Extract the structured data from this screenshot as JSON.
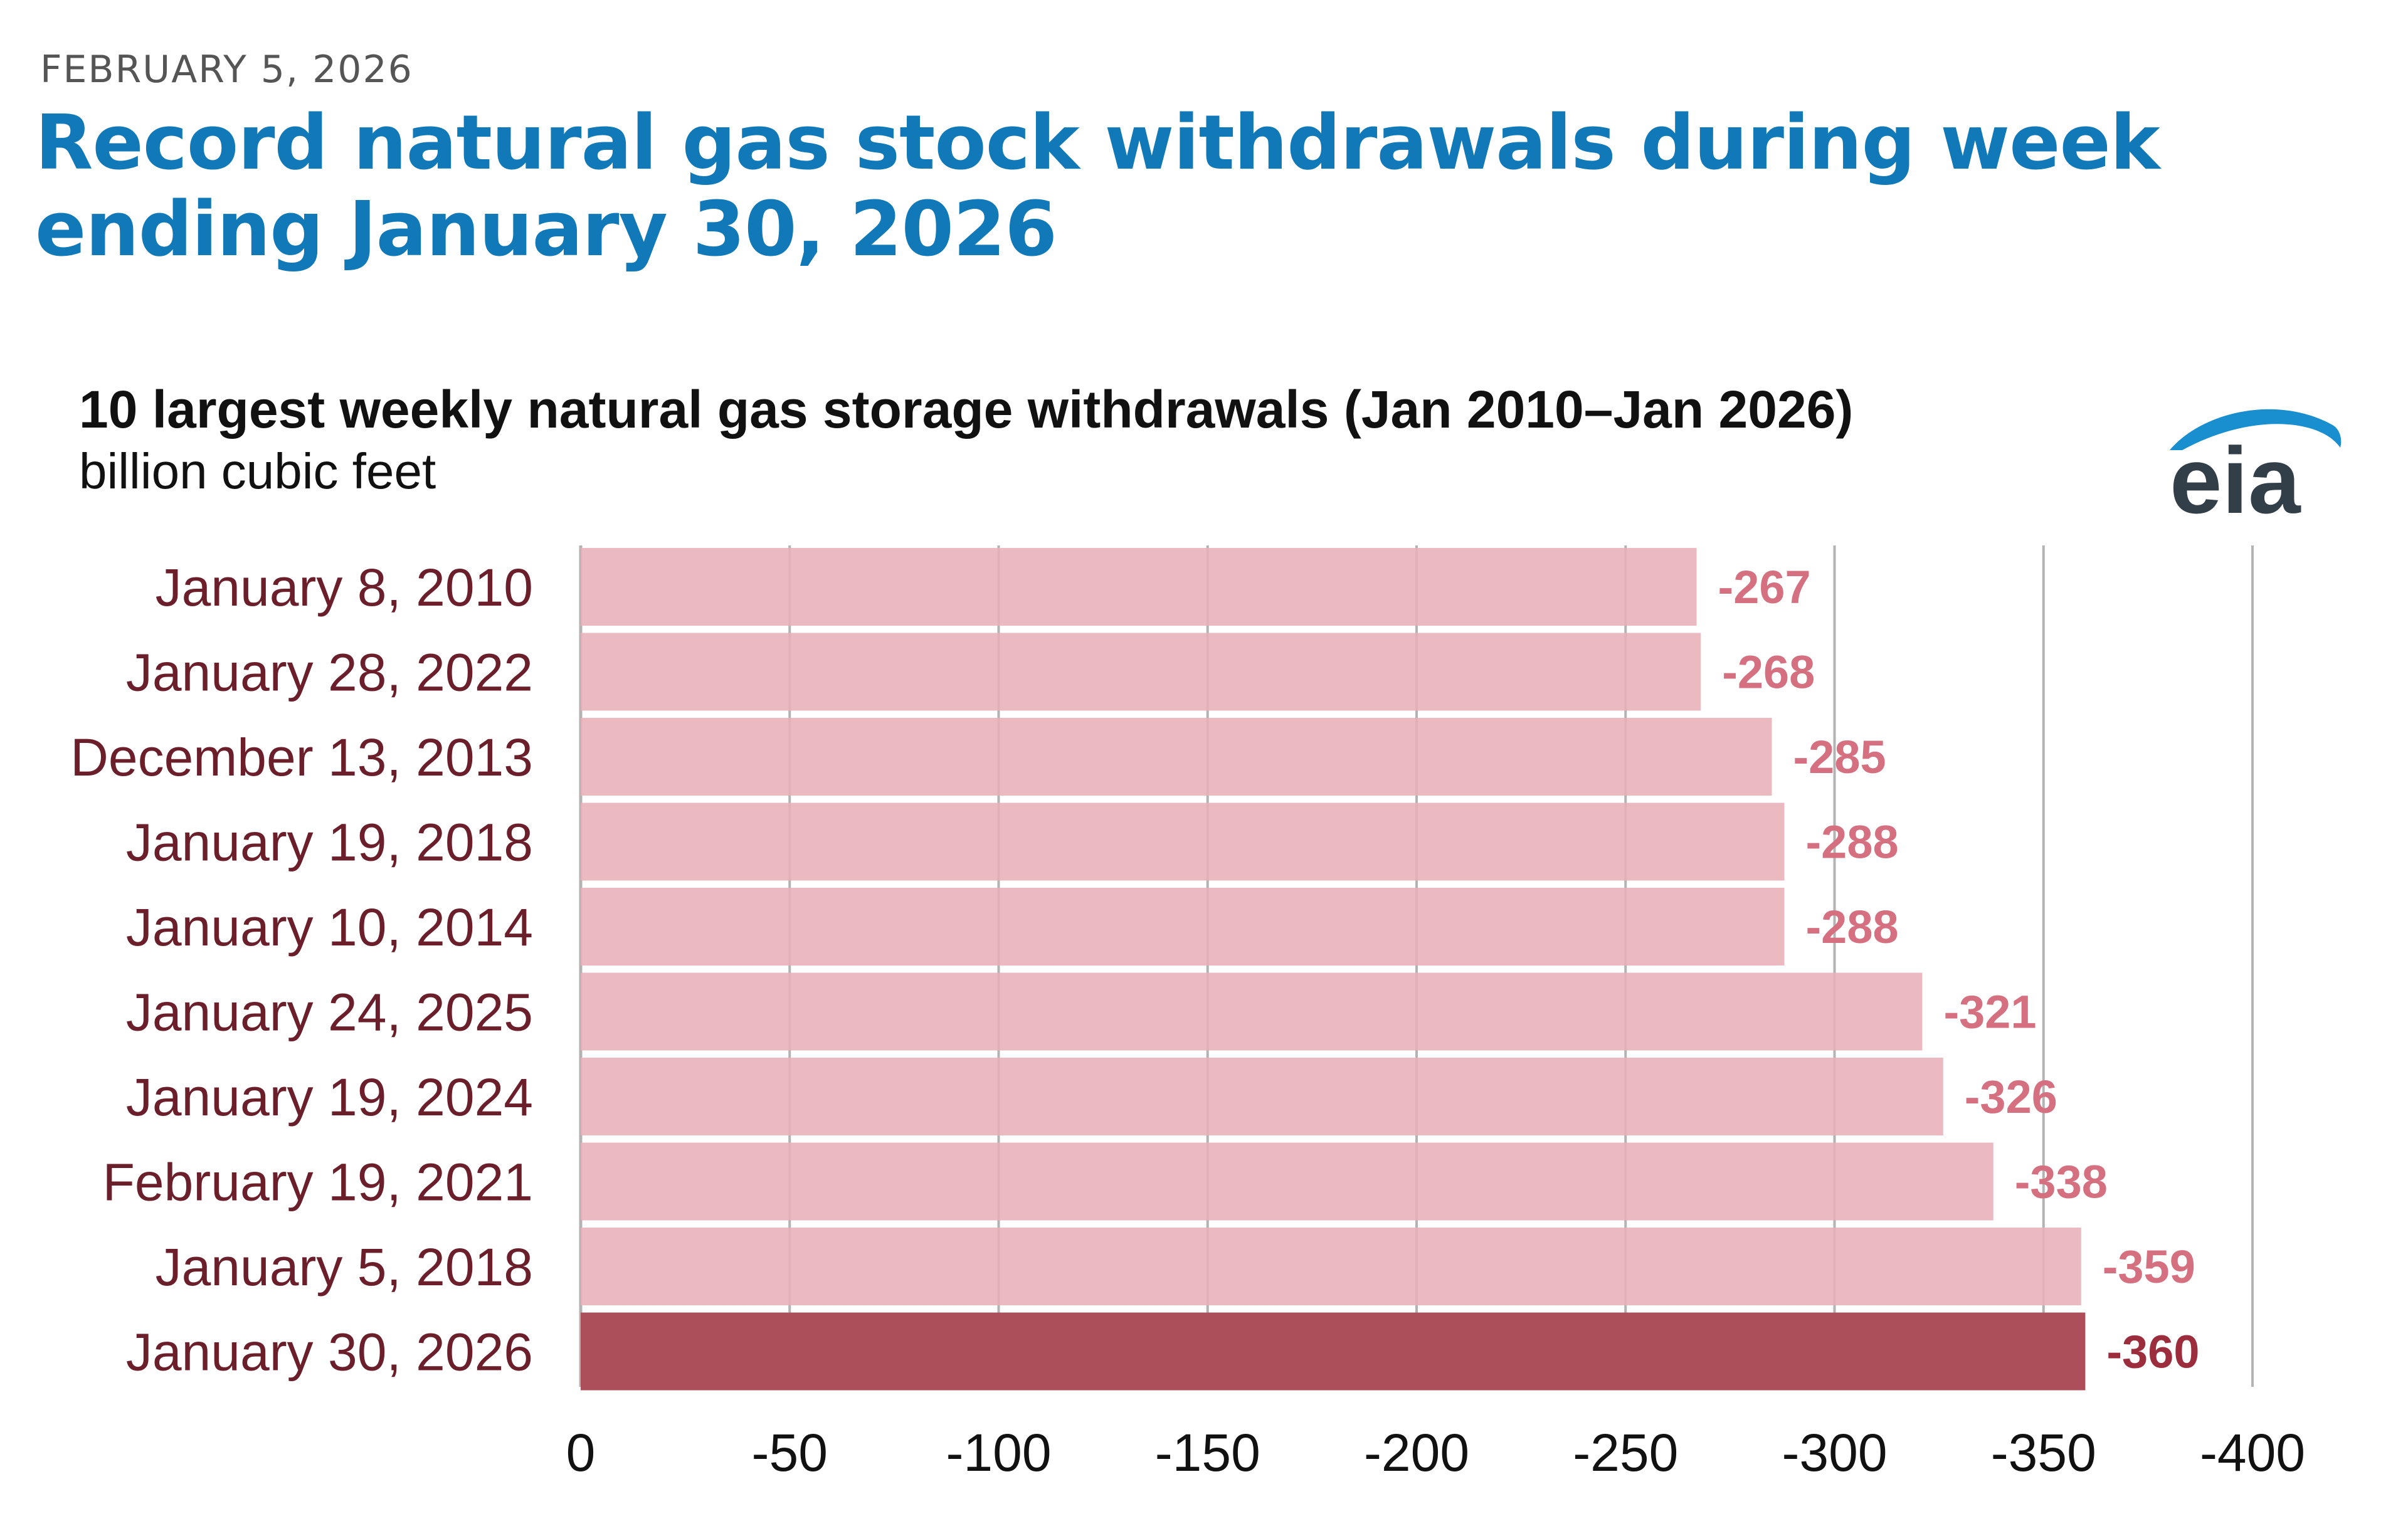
{
  "header": {
    "date": "FEBRUARY 5, 2026",
    "headline": "Record natural gas stock withdrawals during week ending January 30, 2026"
  },
  "logo": {
    "text": "eia"
  },
  "chart_data": {
    "type": "bar",
    "orientation": "horizontal",
    "title": "10 largest weekly natural gas storage withdrawals (Jan 2010–Jan 2026)",
    "subtitle": "billion cubic feet",
    "categories": [
      "January 8, 2010",
      "January 28, 2022",
      "December 13, 2013",
      "January 19, 2018",
      "January 10, 2014",
      "January 24, 2025",
      "January 19, 2024",
      "February 19, 2021",
      "January 5, 2018",
      "January 30, 2026"
    ],
    "values": [
      -267,
      -268,
      -285,
      -288,
      -288,
      -321,
      -326,
      -338,
      -359,
      -360
    ],
    "data_labels": [
      "-267",
      "-268",
      "-285",
      "-288",
      "-288",
      "-321",
      "-326",
      "-338",
      "-359",
      "-360"
    ],
    "highlight_index": 9,
    "xlim": [
      0,
      -400
    ],
    "xticks": [
      0,
      -50,
      -100,
      -150,
      -200,
      -250,
      -300,
      -350,
      -400
    ],
    "xtick_labels": [
      "0",
      "-50",
      "-100",
      "-150",
      "-200",
      "-250",
      "-300",
      "-350",
      "-400"
    ],
    "grid": true,
    "colors": {
      "bar": "#e8b1b8",
      "bar_highlight": "#ad4f5b",
      "label": "#d4707f",
      "label_highlight": "#9b2d3c",
      "category_text": "#6b1f2a",
      "grid": "#b3b3b3"
    }
  }
}
